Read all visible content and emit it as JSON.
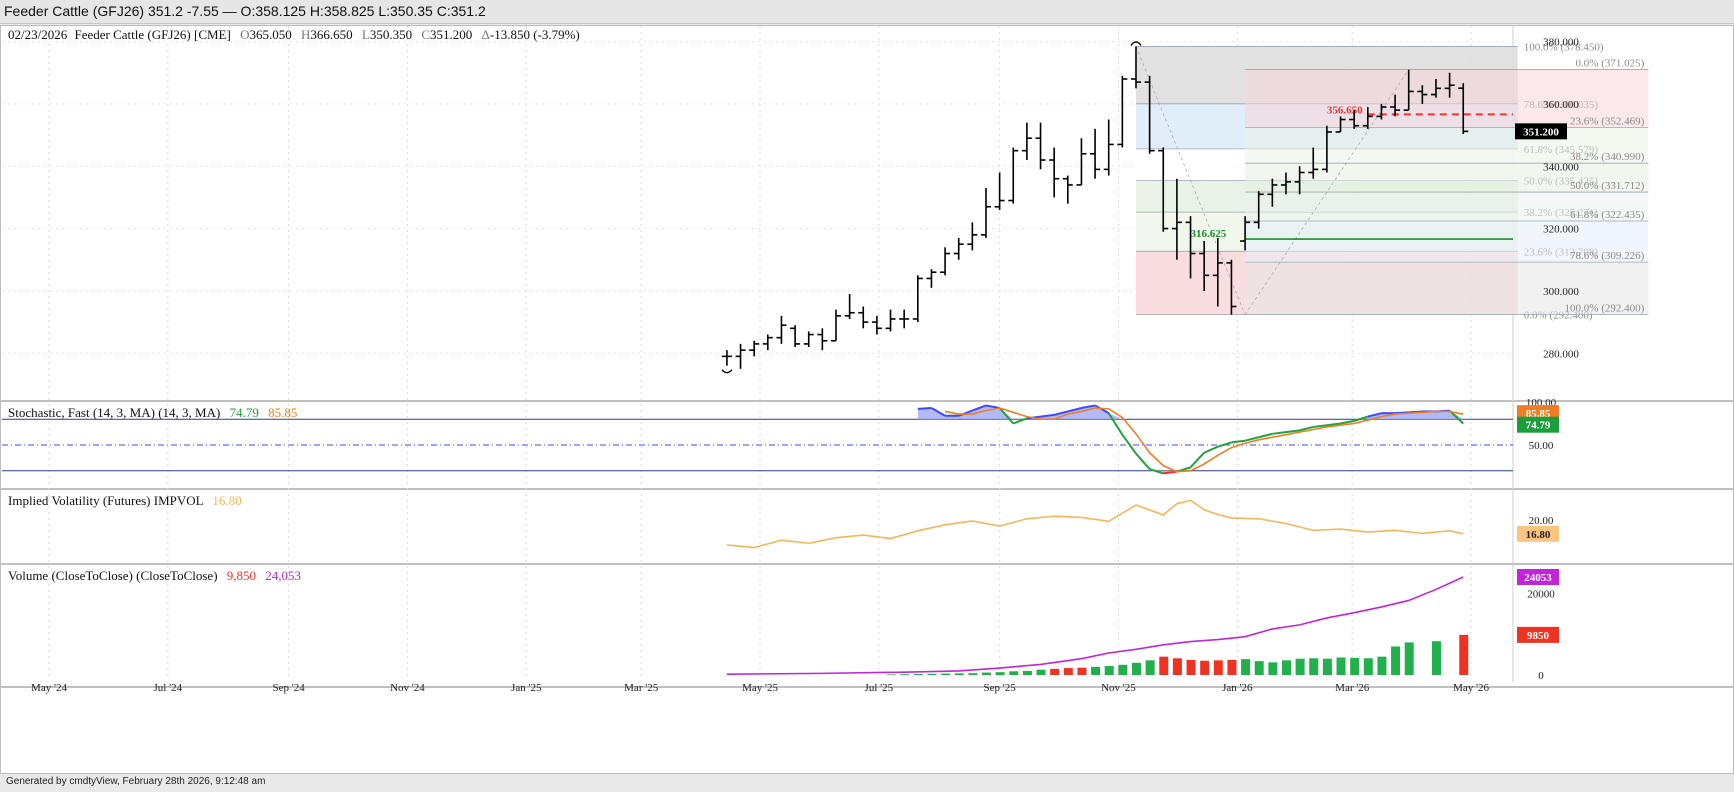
{
  "window": {
    "title": "Feeder Cattle (GFJ26) 351.2 -7.55 — O:358.125 H:358.825 L:350.35 C:351.2"
  },
  "footer": {
    "text": "Generated by cmdtyView, February 28th 2026, 9:12:48 am"
  },
  "colors": {
    "bar": "#000000",
    "stoch_k": "#1fa33a",
    "stoch_d": "#f07d21",
    "stoch_fill_hi": "#3b49ff",
    "stoch_fill_lo": "#ff2a2a",
    "impvol": "#f7b55a",
    "volume_line": "#c025d8",
    "volume_up": "#21b04b",
    "volume_down": "#ee3322",
    "last_price_badge": "#000000",
    "fib_line": "#e33",
    "support_line": "#1a8f2c"
  },
  "chart_data": [
    {
      "type": "ohlc",
      "pane": "price",
      "header": {
        "date": "02/23/2026",
        "symbol": "Feeder Cattle (GFJ26) [CME]",
        "open": "365.050",
        "high": "366.650",
        "low": "350.350",
        "close": "351.200",
        "change": "-13.850 (-3.79%)"
      },
      "ylim": [
        265,
        385
      ],
      "y_ticks": [
        "280.000",
        "300.000",
        "320.000",
        "340.000",
        "360.000",
        "380.000"
      ],
      "last_price": "351.200",
      "x_ticks": [
        "May '24",
        "Jul '24",
        "Sep '24",
        "Nov '24",
        "Jan '25",
        "Mar '25",
        "May '25",
        "Jul '25",
        "Sep '25",
        "Nov '25",
        "Jan '26",
        "Mar '26",
        "May '26"
      ],
      "bars": [
        {
          "d": "2025-04-14",
          "o": 279,
          "h": 281,
          "l": 276,
          "c": 279
        },
        {
          "d": "2025-04-21",
          "o": 279,
          "h": 283,
          "l": 275,
          "c": 281
        },
        {
          "d": "2025-04-28",
          "o": 281,
          "h": 284,
          "l": 279,
          "c": 283
        },
        {
          "d": "2025-05-05",
          "o": 283,
          "h": 286,
          "l": 281,
          "c": 285
        },
        {
          "d": "2025-05-12",
          "o": 285,
          "h": 292,
          "l": 283,
          "c": 289
        },
        {
          "d": "2025-05-19",
          "o": 288,
          "h": 289,
          "l": 282,
          "c": 283
        },
        {
          "d": "2025-05-26",
          "o": 283,
          "h": 287,
          "l": 282,
          "c": 286
        },
        {
          "d": "2025-06-02",
          "o": 286,
          "h": 288,
          "l": 281,
          "c": 284
        },
        {
          "d": "2025-06-09",
          "o": 284,
          "h": 294,
          "l": 284,
          "c": 292
        },
        {
          "d": "2025-06-16",
          "o": 292,
          "h": 299,
          "l": 291,
          "c": 293
        },
        {
          "d": "2025-06-23",
          "o": 293,
          "h": 295,
          "l": 288,
          "c": 290
        },
        {
          "d": "2025-06-30",
          "o": 290,
          "h": 292,
          "l": 286,
          "c": 288
        },
        {
          "d": "2025-07-07",
          "o": 288,
          "h": 294,
          "l": 287,
          "c": 291
        },
        {
          "d": "2025-07-14",
          "o": 291,
          "h": 294,
          "l": 288,
          "c": 291
        },
        {
          "d": "2025-07-21",
          "o": 291,
          "h": 305,
          "l": 290,
          "c": 304
        },
        {
          "d": "2025-07-28",
          "o": 304,
          "h": 307,
          "l": 301,
          "c": 306
        },
        {
          "d": "2025-08-04",
          "o": 306,
          "h": 314,
          "l": 305,
          "c": 312
        },
        {
          "d": "2025-08-11",
          "o": 312,
          "h": 317,
          "l": 310,
          "c": 315
        },
        {
          "d": "2025-08-18",
          "o": 315,
          "h": 322,
          "l": 313,
          "c": 318
        },
        {
          "d": "2025-08-25",
          "o": 318,
          "h": 333,
          "l": 317,
          "c": 327
        },
        {
          "d": "2025-09-01",
          "o": 327,
          "h": 338,
          "l": 326,
          "c": 329
        },
        {
          "d": "2025-09-08",
          "o": 329,
          "h": 346,
          "l": 328,
          "c": 345
        },
        {
          "d": "2025-09-15",
          "o": 345,
          "h": 354,
          "l": 342,
          "c": 349
        },
        {
          "d": "2025-09-22",
          "o": 349,
          "h": 354,
          "l": 339,
          "c": 342
        },
        {
          "d": "2025-09-29",
          "o": 342,
          "h": 346,
          "l": 330,
          "c": 336
        },
        {
          "d": "2025-10-06",
          "o": 336,
          "h": 337,
          "l": 328,
          "c": 334
        },
        {
          "d": "2025-10-13",
          "o": 334,
          "h": 349,
          "l": 334,
          "c": 344
        },
        {
          "d": "2025-10-20",
          "o": 344,
          "h": 352,
          "l": 336,
          "c": 339
        },
        {
          "d": "2025-10-27",
          "o": 339,
          "h": 355,
          "l": 337,
          "c": 347
        },
        {
          "d": "2025-11-03",
          "o": 347,
          "h": 369,
          "l": 346,
          "c": 368
        },
        {
          "d": "2025-11-10",
          "o": 368,
          "h": 378.45,
          "l": 365,
          "c": 367
        },
        {
          "d": "2025-11-17",
          "o": 367,
          "h": 369,
          "l": 344,
          "c": 345
        },
        {
          "d": "2025-11-24",
          "o": 345,
          "h": 346,
          "l": 319,
          "c": 320
        },
        {
          "d": "2025-12-01",
          "o": 320,
          "h": 336,
          "l": 310,
          "c": 322
        },
        {
          "d": "2025-12-08",
          "o": 322,
          "h": 324,
          "l": 304,
          "c": 312
        },
        {
          "d": "2025-12-15",
          "o": 312,
          "h": 316,
          "l": 300,
          "c": 305
        },
        {
          "d": "2025-12-22",
          "o": 305,
          "h": 317,
          "l": 295,
          "c": 309
        },
        {
          "d": "2025-12-29",
          "o": 309,
          "h": 310,
          "l": 292.4,
          "c": 295
        },
        {
          "d": "2026-01-05",
          "o": 316,
          "h": 324,
          "l": 313,
          "c": 322
        },
        {
          "d": "2026-01-12",
          "o": 322,
          "h": 332,
          "l": 320,
          "c": 331
        },
        {
          "d": "2026-01-19",
          "o": 331,
          "h": 336,
          "l": 327,
          "c": 334
        },
        {
          "d": "2026-01-26",
          "o": 334,
          "h": 338,
          "l": 331,
          "c": 335
        },
        {
          "d": "2026-02-02",
          "o": 335,
          "h": 340,
          "l": 331,
          "c": 338
        },
        {
          "d": "2026-02-09",
          "o": 338,
          "h": 346,
          "l": 336,
          "c": 339
        },
        {
          "d": "2026-02-16",
          "o": 339,
          "h": 353,
          "l": 338,
          "c": 351
        },
        {
          "d": "2026-02-23",
          "o": 351,
          "h": 356,
          "l": 351,
          "c": 355
        },
        {
          "d": "2026-03-02",
          "o": 355,
          "h": 358,
          "l": 352,
          "c": 353
        },
        {
          "d": "2026-03-09",
          "o": 353,
          "h": 359,
          "l": 352,
          "c": 356
        },
        {
          "d": "2026-03-16",
          "o": 356,
          "h": 360,
          "l": 355,
          "c": 359
        },
        {
          "d": "2026-03-23",
          "o": 359,
          "h": 363,
          "l": 356,
          "c": 358
        },
        {
          "d": "2026-03-30",
          "o": 358,
          "h": 371,
          "l": 358,
          "c": 364
        },
        {
          "d": "2026-04-06",
          "o": 364,
          "h": 366,
          "l": 360,
          "c": 363
        },
        {
          "d": "2026-04-13",
          "o": 363,
          "h": 368,
          "l": 362,
          "c": 365
        },
        {
          "d": "2026-04-20",
          "o": 365,
          "h": 370,
          "l": 362,
          "c": 366
        },
        {
          "d": "2026-04-27",
          "o": 365.05,
          "h": 366.65,
          "l": 350.35,
          "c": 351.2
        }
      ],
      "fib_down": {
        "from_date": "2025-11-10",
        "to_date": "2026-05-25",
        "levels": [
          {
            "label": "100.0% (378.450)",
            "value": 378.45,
            "fill": "#dcdcdc"
          },
          {
            "label": "78.6% (360.035)",
            "value": 360.035,
            "fill": "#dcebf8"
          },
          {
            "label": "61.8% (345.579)",
            "value": 345.579,
            "fill": "#ffffff"
          },
          {
            "label": "50.0% (335.425)",
            "value": 335.425,
            "fill": "#e4f0e0"
          },
          {
            "label": "38.2% (325.271)",
            "value": 325.271,
            "fill": "#eef6ea"
          },
          {
            "label": "23.6% (312.708)",
            "value": 312.708,
            "fill": "#f8d7d9"
          },
          {
            "label": "0.0% (292.400)",
            "value": 292.4,
            "fill": "#f8d7d9"
          }
        ]
      },
      "fib_up": {
        "from_date": "2026-01-05",
        "to_date": "2026-07-31",
        "levels": [
          {
            "label": "0.0% (371.025)",
            "value": 371.025
          },
          {
            "label": "23.6% (352.469)",
            "value": 352.469
          },
          {
            "label": "38.2% (340.990)",
            "value": 340.99
          },
          {
            "label": "50.0% (331.712)",
            "value": 331.712
          },
          {
            "label": "61.8% (322.435)",
            "value": 322.435
          },
          {
            "label": "78.6% (309.226)",
            "value": 309.226
          },
          {
            "label": "100.0% (292.400)",
            "value": 292.4
          }
        ]
      },
      "annotations": [
        {
          "text": "356.650",
          "value": 356.65,
          "color": "#e33"
        },
        {
          "text": "316.625",
          "value": 316.625,
          "color": "#1a8f2c"
        }
      ]
    },
    {
      "type": "line",
      "pane": "stochastic",
      "title": "Stochastic, Fast (14, 3, MA)  (14, 3, MA)",
      "k_value": "74.79",
      "d_value": "85.85",
      "ylim": [
        0,
        100
      ],
      "y_ticks": [
        "50.00",
        "100.00"
      ],
      "upper": 80,
      "lower": 20,
      "mid": 50,
      "x": [
        "2025-07-21",
        "2025-07-28",
        "2025-08-04",
        "2025-08-11",
        "2025-08-18",
        "2025-08-25",
        "2025-09-01",
        "2025-09-08",
        "2025-09-15",
        "2025-09-22",
        "2025-09-29",
        "2025-10-06",
        "2025-10-13",
        "2025-10-20",
        "2025-10-27",
        "2025-11-03",
        "2025-11-10",
        "2025-11-17",
        "2025-11-24",
        "2025-12-01",
        "2025-12-08",
        "2025-12-15",
        "2025-12-22",
        "2025-12-29",
        "2026-01-05",
        "2026-01-12",
        "2026-01-19",
        "2026-01-26",
        "2026-02-02",
        "2026-02-09",
        "2026-02-16",
        "2026-02-23",
        "2026-03-02",
        "2026-03-09",
        "2026-03-16",
        "2026-03-23",
        "2026-03-30",
        "2026-04-06",
        "2026-04-13",
        "2026-04-20",
        "2026-04-27"
      ],
      "k": [
        92,
        93,
        84,
        84,
        90,
        96,
        93,
        75,
        81,
        83,
        85,
        89,
        93,
        96,
        87,
        62,
        40,
        22,
        17,
        19,
        24,
        41,
        48,
        53,
        55,
        59,
        63,
        65,
        67,
        71,
        73,
        75,
        78,
        83,
        87,
        87,
        88,
        89,
        89,
        90,
        75
      ],
      "d": [
        null,
        null,
        89,
        86,
        86,
        90,
        93,
        88,
        83,
        80,
        80,
        86,
        89,
        93,
        92,
        82,
        63,
        41,
        26,
        19,
        20,
        28,
        38,
        47,
        52,
        56,
        59,
        62,
        65,
        68,
        71,
        73,
        75,
        79,
        83,
        86,
        87,
        88,
        89,
        89,
        85.85
      ]
    },
    {
      "type": "line",
      "pane": "impvol",
      "title": "Implied Volatility (Futures)  IMPVOL",
      "value": "16.80",
      "ylim": [
        10,
        27
      ],
      "y_ticks": [
        "20.00"
      ],
      "x": [
        "2025-04-14",
        "2025-04-28",
        "2025-05-12",
        "2025-05-26",
        "2025-06-09",
        "2025-06-23",
        "2025-07-07",
        "2025-07-21",
        "2025-08-04",
        "2025-08-18",
        "2025-09-01",
        "2025-09-15",
        "2025-09-29",
        "2025-10-13",
        "2025-10-27",
        "2025-11-10",
        "2025-11-24",
        "2025-12-01",
        "2025-12-08",
        "2025-12-15",
        "2025-12-22",
        "2025-12-29",
        "2026-01-12",
        "2026-01-26",
        "2026-02-09",
        "2026-02-23",
        "2026-03-09",
        "2026-03-23",
        "2026-04-06",
        "2026-04-20",
        "2026-04-27"
      ],
      "values": [
        14.2,
        13.6,
        15.3,
        14.6,
        15.9,
        16.5,
        15.7,
        17.5,
        18.9,
        19.8,
        18.6,
        20.3,
        20.9,
        20.6,
        19.7,
        23.5,
        21.2,
        23.8,
        24.6,
        22.4,
        21.3,
        20.5,
        20.3,
        19.2,
        17.6,
        17.9,
        17.2,
        17.6,
        16.9,
        17.5,
        16.8
      ]
    },
    {
      "type": "bar",
      "pane": "volume",
      "title": "Volume (CloseToClose)  (CloseToClose)",
      "bar_value": "9,850",
      "line_value": "24,053",
      "bar_badge": "9850",
      "line_badge": "24053",
      "ylim": [
        0,
        27000
      ],
      "y_ticks": [
        "0",
        "20000"
      ],
      "x": [
        "2025-07-07",
        "2025-07-14",
        "2025-07-21",
        "2025-07-28",
        "2025-08-04",
        "2025-08-11",
        "2025-08-18",
        "2025-08-25",
        "2025-09-01",
        "2025-09-08",
        "2025-09-15",
        "2025-09-22",
        "2025-09-29",
        "2025-10-06",
        "2025-10-13",
        "2025-10-20",
        "2025-10-27",
        "2025-11-03",
        "2025-11-10",
        "2025-11-17",
        "2025-11-24",
        "2025-12-01",
        "2025-12-08",
        "2025-12-15",
        "2025-12-22",
        "2025-12-29",
        "2026-01-05",
        "2026-01-12",
        "2026-01-19",
        "2026-01-26",
        "2026-02-02",
        "2026-02-09",
        "2026-02-16",
        "2026-02-23",
        "2026-03-02",
        "2026-03-09",
        "2026-03-16",
        "2026-03-23",
        "2026-03-30",
        "2026-04-13",
        "2026-04-27"
      ],
      "bars": [
        150,
        200,
        250,
        300,
        350,
        400,
        450,
        600,
        700,
        900,
        1000,
        1300,
        1500,
        1700,
        1800,
        2000,
        2200,
        2500,
        3000,
        3600,
        4500,
        4100,
        3700,
        3500,
        3600,
        3700,
        3900,
        3400,
        3100,
        3600,
        4000,
        4100,
        4000,
        4300,
        4200,
        4100,
        4500,
        7000,
        8000,
        8300,
        9850
      ],
      "bar_dir": [
        "u",
        "u",
        "u",
        "u",
        "u",
        "u",
        "u",
        "u",
        "u",
        "u",
        "u",
        "u",
        "d",
        "d",
        "d",
        "u",
        "u",
        "u",
        "u",
        "u",
        "d",
        "d",
        "d",
        "d",
        "d",
        "d",
        "u",
        "u",
        "u",
        "u",
        "u",
        "u",
        "u",
        "u",
        "u",
        "u",
        "u",
        "u",
        "u",
        "u",
        "d"
      ],
      "cum_x": [
        "2025-04-14",
        "2025-06-02",
        "2025-07-14",
        "2025-08-11",
        "2025-09-01",
        "2025-09-22",
        "2025-10-13",
        "2025-10-27",
        "2025-11-10",
        "2025-11-24",
        "2025-12-08",
        "2025-12-22",
        "2026-01-05",
        "2026-01-19",
        "2026-02-02",
        "2026-02-16",
        "2026-03-02",
        "2026-03-16",
        "2026-03-30",
        "2026-04-13",
        "2026-04-27"
      ],
      "cum": [
        200,
        400,
        700,
        1000,
        1700,
        2600,
        4000,
        5400,
        6300,
        7400,
        8200,
        8700,
        9400,
        11300,
        12300,
        14000,
        15300,
        16700,
        18300,
        21000,
        24053
      ]
    }
  ]
}
